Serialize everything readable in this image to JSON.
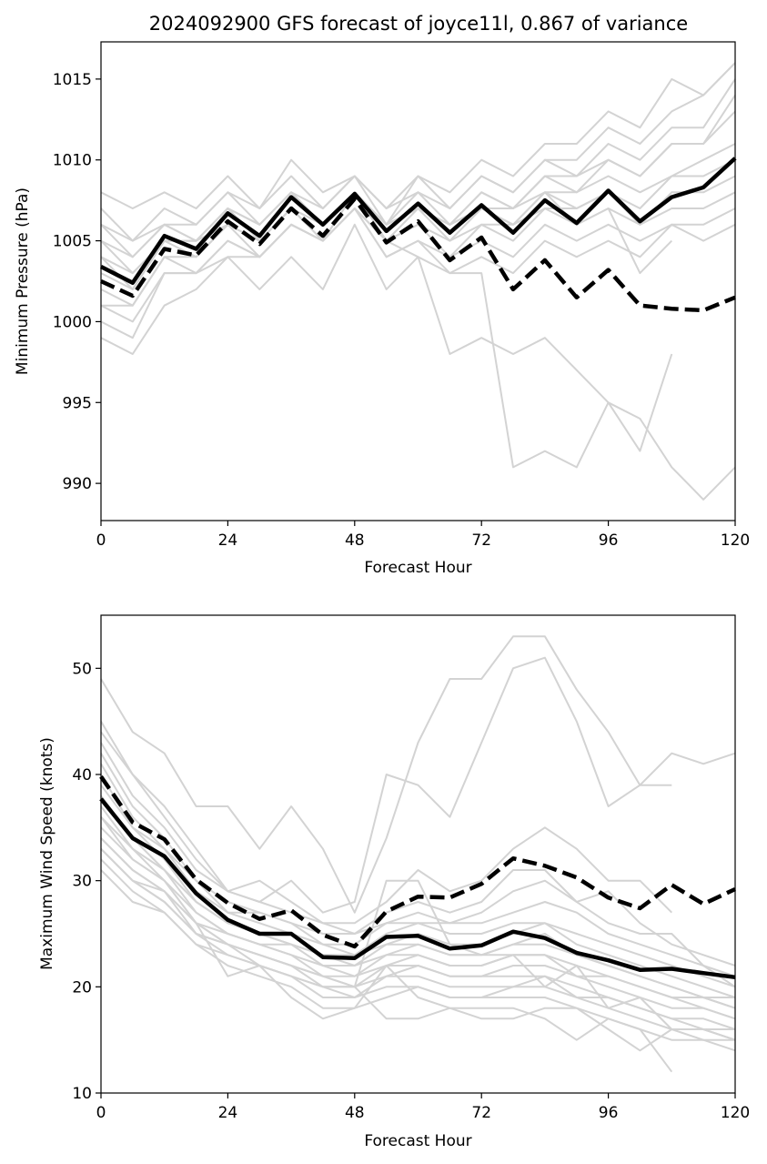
{
  "chart_data": [
    {
      "type": "line",
      "title": "2024092900 GFS forecast of joyce11l, 0.867 of variance",
      "xlabel": "Forecast Hour",
      "ylabel": "Minimum Pressure (hPa)",
      "xlim": [
        0,
        120
      ],
      "ylim": [
        987.7,
        1017.3
      ],
      "xticks": [
        0,
        24,
        48,
        72,
        96,
        120
      ],
      "yticks": [
        990,
        995,
        1000,
        1005,
        1010,
        1015
      ],
      "grid": false,
      "legend": "none",
      "x": [
        0,
        6,
        12,
        18,
        24,
        30,
        36,
        42,
        48,
        54,
        60,
        66,
        72,
        78,
        84,
        90,
        96,
        102,
        108,
        114,
        120
      ],
      "colors": {
        "member": "#d3d3d3",
        "mean": "#000000"
      },
      "ensemble_members": [
        [
          1008,
          1007,
          1008,
          1007,
          1009,
          1007,
          1010,
          1008,
          1009,
          1007,
          1009,
          1008,
          1010,
          1009,
          1011,
          1011,
          1013,
          1012,
          1015,
          1014,
          1016
        ],
        [
          1007,
          1005,
          1007,
          1006,
          1008,
          1007,
          1009,
          1007,
          1009,
          1007,
          1008,
          1007,
          1009,
          1008,
          1010,
          1010,
          1012,
          1011,
          1013,
          1014,
          1016
        ],
        [
          1006,
          1005,
          1006,
          1006,
          1008,
          1006,
          1008,
          1007,
          1009,
          1006,
          1009,
          1007,
          1009,
          1008,
          1010,
          1009,
          1011,
          1010,
          1012,
          1012,
          1015
        ],
        [
          1006,
          1004,
          1006,
          1005,
          1007,
          1006,
          1008,
          1006,
          1008,
          1006,
          1008,
          1006,
          1008,
          1007,
          1009,
          1009,
          1010,
          1009,
          1011,
          1011,
          1014
        ],
        [
          1005,
          1004,
          1006,
          1005,
          1007,
          1006,
          1008,
          1006,
          1008,
          1006,
          1007,
          1006,
          1008,
          1007,
          1009,
          1008,
          1010,
          1009,
          1011,
          1011,
          1013
        ],
        [
          1004,
          1003,
          1005,
          1005,
          1007,
          1005,
          1007,
          1006,
          1008,
          1006,
          1007,
          1006,
          1007,
          1007,
          1008,
          1008,
          1009,
          1008,
          1009,
          1010,
          1011
        ],
        [
          1003,
          1002,
          1005,
          1004,
          1006,
          1005,
          1007,
          1005,
          1008,
          1005,
          1007,
          1005,
          1007,
          1006,
          1008,
          1007,
          1008,
          1007,
          1009,
          1009,
          1010
        ],
        [
          1002,
          1001,
          1004,
          1004,
          1006,
          1004,
          1006,
          1005,
          1007,
          1005,
          1006,
          1005,
          1006,
          1006,
          1007,
          1007,
          1008,
          1006,
          1008,
          1008,
          1009
        ],
        [
          1001,
          1001,
          1004,
          1003,
          1005,
          1004,
          1006,
          1005,
          1007,
          1005,
          1006,
          1004,
          1006,
          1005,
          1007,
          1006,
          1007,
          1006,
          1007,
          1007,
          1008
        ],
        [
          1001,
          1000,
          1003,
          1003,
          1005,
          1004,
          1006,
          1005,
          1007,
          1004,
          1005,
          1004,
          1005,
          1004,
          1006,
          1005,
          1006,
          1005,
          1006,
          1006,
          1007
        ],
        [
          1000,
          999,
          1003,
          1003,
          1004,
          1004,
          1006,
          1005,
          1007,
          1004,
          1005,
          1003,
          1004,
          1003,
          1005,
          1004,
          1005,
          1004,
          1006,
          1005,
          1006
        ],
        [
          999,
          998,
          1001,
          1002,
          1004,
          1002,
          1004,
          1002,
          1006,
          1002,
          1004,
          1003,
          1003,
          991,
          992,
          991,
          995,
          994,
          991,
          989,
          991
        ],
        [
          1004,
          1002,
          1005,
          1005,
          1006,
          1005,
          1007,
          1005,
          1008,
          1005,
          1004,
          998,
          999,
          998,
          999,
          997,
          995,
          992,
          998,
          null,
          null
        ],
        [
          1005,
          1003,
          1005,
          1005,
          1007,
          1005,
          1007,
          1006,
          1008,
          1006,
          1007,
          1006,
          1007,
          1006,
          1008,
          1006,
          1007,
          1003,
          1005,
          null,
          null
        ]
      ],
      "series": [
        {
          "style": "solid",
          "values": [
            1003.4,
            1002.4,
            1005.3,
            1004.5,
            1006.7,
            1005.3,
            1007.7,
            1006.0,
            1007.9,
            1005.6,
            1007.3,
            1005.5,
            1007.2,
            1005.5,
            1007.5,
            1006.1,
            1008.1,
            1006.2,
            1007.7,
            1008.3,
            1010.1
          ]
        },
        {
          "style": "dashed",
          "values": [
            1002.5,
            1001.6,
            1004.5,
            1004.1,
            1006.2,
            1004.8,
            1007.0,
            1005.3,
            1007.6,
            1004.9,
            1006.2,
            1003.8,
            1005.2,
            1002.0,
            1003.8,
            1001.5,
            1003.2,
            1001.0,
            1000.8,
            1000.7,
            1001.5
          ]
        }
      ]
    },
    {
      "type": "line",
      "title": "",
      "xlabel": "Forecast Hour",
      "ylabel": "Maximum Wind Speed (knots)",
      "xlim": [
        0,
        120
      ],
      "ylim": [
        10,
        55
      ],
      "xticks": [
        0,
        24,
        48,
        72,
        96,
        120
      ],
      "yticks": [
        10,
        20,
        30,
        40,
        50
      ],
      "grid": false,
      "legend": "none",
      "x": [
        0,
        6,
        12,
        18,
        24,
        30,
        36,
        42,
        48,
        54,
        60,
        66,
        72,
        78,
        84,
        90,
        96,
        102,
        108,
        114,
        120
      ],
      "colors": {
        "member": "#d3d3d3",
        "mean": "#000000"
      },
      "ensemble_members": [
        [
          49,
          44,
          42,
          37,
          37,
          33,
          37,
          33,
          27,
          34,
          43,
          49,
          49,
          53,
          53,
          48,
          44,
          39,
          42,
          41,
          42
        ],
        [
          45,
          40,
          37,
          33,
          29,
          28,
          30,
          27,
          28,
          40,
          39,
          36,
          43,
          50,
          51,
          45,
          37,
          39,
          39,
          null,
          null
        ],
        [
          44,
          40,
          36,
          32,
          29,
          30,
          28,
          26,
          26,
          28,
          31,
          29,
          30,
          33,
          35,
          33,
          30,
          30,
          27,
          null,
          null
        ],
        [
          43,
          38,
          35,
          31,
          29,
          28,
          27,
          26,
          25,
          27,
          28,
          27,
          28,
          31,
          31,
          28,
          29,
          26,
          24,
          23,
          22
        ],
        [
          42,
          37,
          34,
          30,
          28,
          27,
          26,
          25,
          25,
          26,
          27,
          26,
          27,
          29,
          30,
          28,
          26,
          25,
          25,
          22,
          21
        ],
        [
          41,
          36,
          33,
          30,
          27,
          27,
          26,
          24,
          24,
          26,
          26,
          26,
          26,
          27,
          28,
          27,
          25,
          24,
          23,
          22,
          20
        ],
        [
          40,
          35,
          33,
          29,
          27,
          26,
          25,
          24,
          23,
          25,
          26,
          25,
          25,
          26,
          26,
          25,
          24,
          23,
          22,
          21,
          20
        ],
        [
          39,
          35,
          32,
          28,
          26,
          25,
          24,
          23,
          23,
          24,
          25,
          24,
          24,
          25,
          26,
          24,
          23,
          22,
          21,
          20,
          19
        ],
        [
          38,
          34,
          31,
          28,
          26,
          25,
          24,
          23,
          22,
          24,
          24,
          23,
          23,
          24,
          25,
          23,
          22,
          21,
          20,
          19,
          19
        ],
        [
          37,
          33,
          31,
          27,
          25,
          24,
          24,
          22,
          22,
          23,
          24,
          23,
          23,
          24,
          24,
          23,
          22,
          21,
          20,
          19,
          18
        ],
        [
          36,
          33,
          30,
          27,
          25,
          24,
          23,
          22,
          21,
          23,
          23,
          22,
          22,
          23,
          23,
          22,
          21,
          20,
          19,
          19,
          18
        ],
        [
          35,
          32,
          30,
          26,
          25,
          24,
          23,
          21,
          21,
          22,
          23,
          22,
          22,
          23,
          23,
          21,
          21,
          20,
          19,
          18,
          17
        ],
        [
          34,
          31,
          29,
          26,
          24,
          23,
          22,
          21,
          20,
          22,
          22,
          21,
          21,
          22,
          22,
          21,
          20,
          19,
          18,
          18,
          17
        ],
        [
          33,
          30,
          28,
          25,
          24,
          23,
          22,
          20,
          20,
          21,
          22,
          21,
          21,
          21,
          21,
          20,
          19,
          18,
          17,
          17,
          16
        ],
        [
          33,
          30,
          28,
          25,
          23,
          22,
          21,
          20,
          19,
          21,
          21,
          20,
          20,
          20,
          21,
          19,
          19,
          18,
          17,
          16,
          16
        ],
        [
          32,
          29,
          27,
          24,
          23,
          22,
          21,
          19,
          19,
          20,
          20,
          19,
          19,
          20,
          20,
          19,
          18,
          17,
          16,
          16,
          15
        ],
        [
          31,
          28,
          27,
          24,
          22,
          21,
          20,
          18,
          18,
          19,
          20,
          19,
          19,
          19,
          19,
          18,
          17,
          16,
          15,
          15,
          14
        ],
        [
          33,
          30,
          29,
          25,
          24,
          22,
          19,
          17,
          18,
          22,
          19,
          18,
          18,
          18,
          17,
          15,
          17,
          16,
          12,
          null,
          null
        ],
        [
          34,
          31,
          29,
          26,
          21,
          22,
          21,
          20,
          20,
          17,
          17,
          18,
          17,
          17,
          18,
          18,
          16,
          14,
          16,
          15,
          15
        ],
        [
          36,
          32,
          30,
          26,
          24,
          23,
          22,
          21,
          20,
          30,
          30,
          24,
          23,
          23,
          20,
          22,
          18,
          19,
          16,
          16,
          15
        ]
      ],
      "series": [
        {
          "style": "solid",
          "values": [
            37.7,
            34.0,
            32.3,
            28.8,
            26.3,
            25.0,
            25.0,
            22.8,
            22.7,
            24.7,
            24.8,
            23.6,
            23.9,
            25.2,
            24.6,
            23.2,
            22.5,
            21.6,
            21.7,
            21.3,
            20.9
          ]
        },
        {
          "style": "dashed",
          "values": [
            39.8,
            35.5,
            33.9,
            30.1,
            27.9,
            26.4,
            27.2,
            24.9,
            23.8,
            27.1,
            28.5,
            28.4,
            29.7,
            32.1,
            31.4,
            30.3,
            28.4,
            27.4,
            29.6,
            27.8,
            29.2
          ]
        }
      ]
    }
  ]
}
